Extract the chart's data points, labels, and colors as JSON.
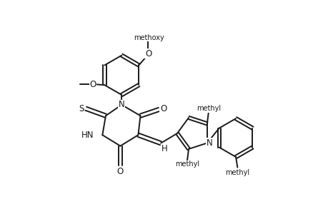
{
  "background_color": "#ffffff",
  "line_color": "#1a1a1a",
  "line_width": 1.4,
  "font_size": 8.5,
  "fig_width": 4.6,
  "fig_height": 3.0,
  "dpi": 100,
  "xlim": [
    0,
    9.2
  ],
  "ylim": [
    0,
    6.0
  ]
}
